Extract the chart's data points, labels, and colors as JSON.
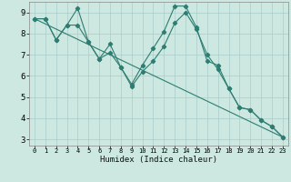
{
  "xlabel": "Humidex (Indice chaleur)",
  "bg_color": "#cce8e0",
  "grid_color": "#aacccc",
  "line_color": "#2e7d72",
  "xlim": [
    -0.5,
    23.5
  ],
  "ylim": [
    2.7,
    9.5
  ],
  "xticks": [
    0,
    1,
    2,
    3,
    4,
    5,
    6,
    7,
    8,
    9,
    10,
    11,
    12,
    13,
    14,
    15,
    16,
    17,
    18,
    19,
    20,
    21,
    22,
    23
  ],
  "yticks": [
    3,
    4,
    5,
    6,
    7,
    8,
    9
  ],
  "line1_x": [
    0,
    1,
    2,
    3,
    4,
    5,
    6,
    7,
    8,
    9,
    10,
    11,
    12,
    13,
    14,
    15,
    16,
    17,
    18,
    19,
    20,
    21,
    22,
    23
  ],
  "line1_y": [
    8.7,
    8.7,
    7.7,
    8.4,
    9.2,
    7.6,
    6.8,
    7.5,
    6.4,
    5.6,
    6.5,
    7.3,
    8.1,
    9.3,
    9.3,
    8.3,
    6.7,
    6.5,
    5.4,
    4.5,
    4.4,
    3.9,
    3.6,
    3.1
  ],
  "line2_x": [
    0,
    1,
    2,
    3,
    4,
    5,
    6,
    7,
    8,
    9,
    10,
    11,
    12,
    13,
    14,
    15,
    16,
    17,
    18,
    19,
    20,
    21,
    22,
    23
  ],
  "line2_y": [
    8.7,
    8.7,
    7.7,
    8.4,
    8.4,
    7.6,
    6.8,
    7.1,
    6.4,
    5.5,
    6.2,
    6.7,
    7.4,
    8.5,
    9.0,
    8.2,
    7.0,
    6.3,
    5.4,
    4.5,
    4.4,
    3.9,
    3.6,
    3.1
  ],
  "line3_x": [
    0,
    23
  ],
  "line3_y": [
    8.7,
    3.1
  ]
}
